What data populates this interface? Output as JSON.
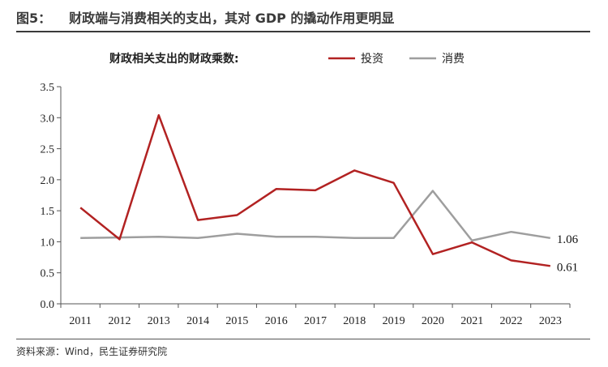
{
  "header": {
    "figure_no": "图5：",
    "title": "财政端与消费相关的支出，其对 GDP 的撬动作用更明显"
  },
  "footer": {
    "source": "资料来源：Wind，民生证券研究院"
  },
  "chart_data": {
    "type": "line",
    "title": "财政相关支出的财政乘数:",
    "categories": [
      "2011",
      "2012",
      "2013",
      "2014",
      "2015",
      "2016",
      "2017",
      "2018",
      "2019",
      "2020",
      "2021",
      "2022",
      "2023"
    ],
    "series": [
      {
        "name": "投资",
        "color": "#b22222",
        "values": [
          1.55,
          1.04,
          3.04,
          1.35,
          1.43,
          1.85,
          1.83,
          2.15,
          1.95,
          0.8,
          0.99,
          0.7,
          0.61
        ]
      },
      {
        "name": "消费",
        "color": "#9e9e9e",
        "values": [
          1.06,
          1.07,
          1.08,
          1.06,
          1.13,
          1.08,
          1.08,
          1.06,
          1.06,
          1.82,
          1.02,
          1.16,
          1.06
        ]
      }
    ],
    "end_labels": [
      "1.06",
      "0.61"
    ],
    "ylim": [
      0,
      3.5
    ],
    "yticks": [
      "0.0",
      "0.5",
      "1.0",
      "1.5",
      "2.0",
      "2.5",
      "3.0",
      "3.5"
    ],
    "grid": false,
    "legend": "top-right"
  }
}
